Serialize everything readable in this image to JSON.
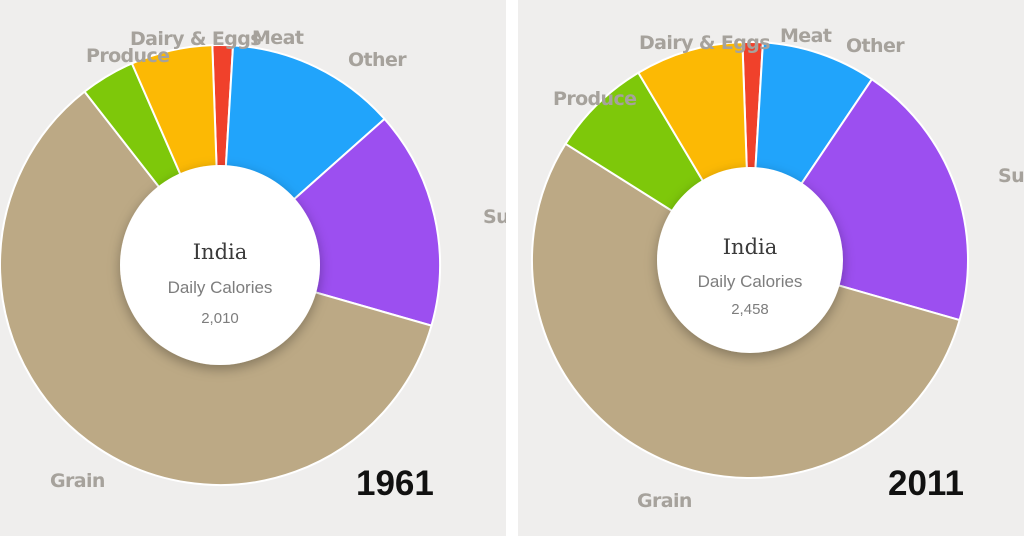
{
  "chart_data": [
    {
      "type": "donut",
      "title": "India",
      "subtitle": "Daily Calories",
      "total_label": "2,010",
      "year": "1961",
      "categories": [
        "Meat",
        "Other",
        "Sugar",
        "Grain",
        "Produce",
        "Dairy & Eggs"
      ],
      "values": [
        1.5,
        12.5,
        16,
        60,
        4,
        6
      ],
      "value_unit": "percent of daily calories (estimated)",
      "colors": [
        "#f0412b",
        "#21a4fb",
        "#9c4ff0",
        "#bca985",
        "#7ec80a",
        "#fcb904"
      ]
    },
    {
      "type": "donut",
      "title": "India",
      "subtitle": "Daily Calories",
      "total_label": "2,458",
      "year": "2011",
      "categories": [
        "Meat",
        "Other",
        "Sugar & ...",
        "Grain",
        "Produce",
        "Dairy & Eggs"
      ],
      "values": [
        1.5,
        8.5,
        20,
        54.5,
        7.5,
        8
      ],
      "value_unit": "percent of daily calories (estimated)",
      "colors": [
        "#f0412b",
        "#21a4fb",
        "#9c4ff0",
        "#bca985",
        "#7ec80a",
        "#fcb904"
      ]
    }
  ]
}
